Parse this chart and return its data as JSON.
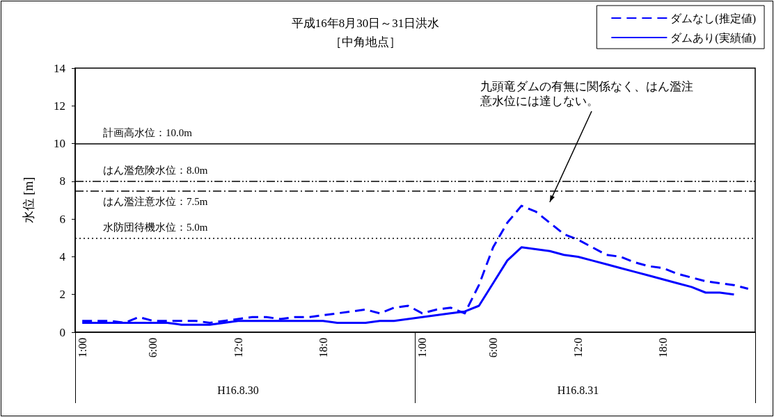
{
  "chart_data": {
    "type": "line",
    "title": "平成16年8月30日～31日洪水",
    "subtitle": "［中角地点］",
    "ylabel": "水位 [m]",
    "categories": [
      "1:00",
      null,
      null,
      null,
      null,
      "6:00",
      null,
      null,
      null,
      null,
      null,
      "12:0",
      null,
      null,
      null,
      null,
      null,
      "18:0",
      null,
      null,
      null,
      null,
      null,
      null,
      "1:00",
      null,
      null,
      null,
      null,
      "6:00",
      null,
      null,
      null,
      null,
      null,
      "12:0",
      null,
      null,
      null,
      null,
      null,
      "18:0",
      null,
      null,
      null,
      null,
      null,
      null
    ],
    "series": [
      {
        "name": "ダムなし(推定値)",
        "color": "#0000ff",
        "line_style": "dashed",
        "values": [
          0.6,
          0.6,
          0.6,
          0.5,
          0.8,
          0.6,
          0.6,
          0.6,
          0.6,
          0.5,
          0.6,
          0.7,
          0.8,
          0.8,
          0.7,
          0.8,
          0.8,
          0.9,
          1.0,
          1.1,
          1.2,
          1.0,
          1.3,
          1.4,
          1.0,
          1.2,
          1.3,
          1.0,
          2.5,
          4.5,
          5.8,
          6.7,
          6.4,
          5.8,
          5.2,
          4.9,
          4.5,
          4.1,
          4.0,
          3.7,
          3.5,
          3.4,
          3.1,
          2.9,
          2.7,
          2.6,
          2.5,
          2.3
        ]
      },
      {
        "name": "ダムあり(実績値)",
        "color": "#0000ff",
        "line_style": "solid",
        "values": [
          0.5,
          0.5,
          0.5,
          0.5,
          0.5,
          0.5,
          0.5,
          0.4,
          0.4,
          0.4,
          0.5,
          0.6,
          0.6,
          0.6,
          0.6,
          0.6,
          0.6,
          0.6,
          0.5,
          0.5,
          0.5,
          0.6,
          0.6,
          0.7,
          0.8,
          0.9,
          1.0,
          1.1,
          1.4,
          2.6,
          3.8,
          4.5,
          4.4,
          4.3,
          4.1,
          4.0,
          3.8,
          3.6,
          3.4,
          3.2,
          3.0,
          2.8,
          2.6,
          2.4,
          2.1,
          2.1,
          2.0,
          null
        ]
      }
    ],
    "ylim": [
      0,
      14
    ],
    "yticks": [
      0,
      2,
      4,
      6,
      8,
      10,
      12,
      14
    ],
    "grid": false,
    "legend": "top right",
    "marker": "none",
    "ref_lines": [
      {
        "axis": "y",
        "value": 10,
        "label": "計画高水位：10.0m",
        "color": "#000000",
        "line_style": "solid"
      },
      {
        "axis": "y",
        "value": 8,
        "label": "はん濫危険水位：8.0m",
        "color": "#000000",
        "line_style": "dashdotdot"
      },
      {
        "axis": "y",
        "value": 7.5,
        "label": "はん濫注意水位：7.5m",
        "color": "#000000",
        "line_style": "dashdot"
      },
      {
        "axis": "y",
        "value": 5,
        "label": "水防団待機水位：5.0m",
        "color": "#000000",
        "line_style": "dotted"
      }
    ],
    "annotations": [
      "九頭竜ダムの有無に関係なく、はん濫注意水位には達しない。",
      "H16.8.30",
      "H16.8.31"
    ]
  }
}
